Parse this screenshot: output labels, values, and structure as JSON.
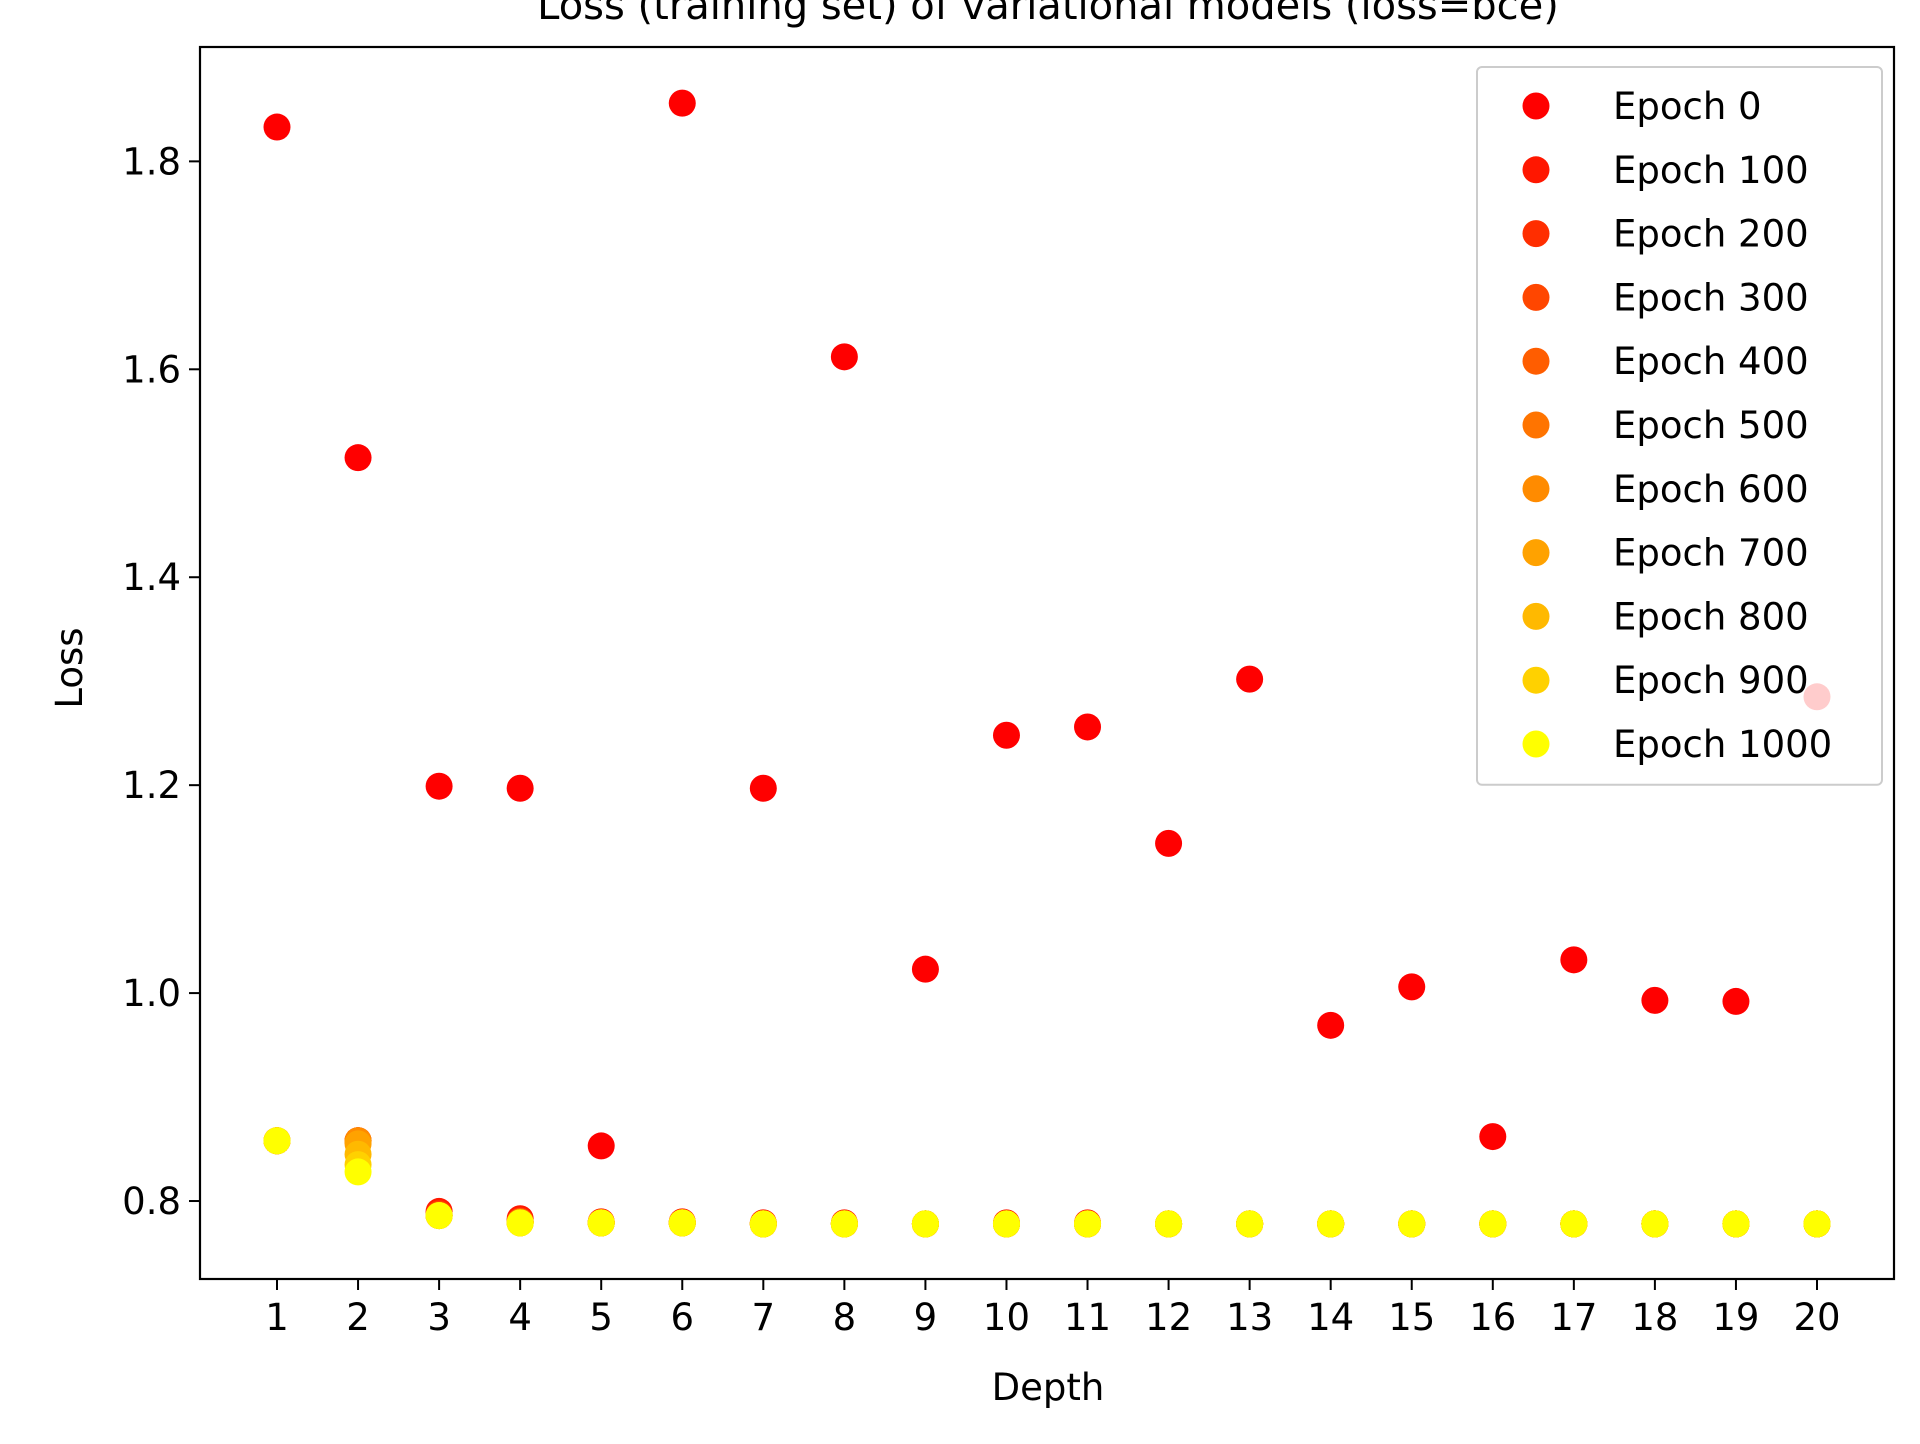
{
  "chart_data": {
    "type": "scatter",
    "title": "Loss (training set) of variational models (loss=bce)",
    "xlabel": "Depth",
    "ylabel": "Loss",
    "x": [
      1,
      2,
      3,
      4,
      5,
      6,
      7,
      8,
      9,
      10,
      11,
      12,
      13,
      14,
      15,
      16,
      17,
      18,
      19,
      20
    ],
    "xticks": [
      "1",
      "2",
      "3",
      "4",
      "5",
      "6",
      "7",
      "8",
      "9",
      "10",
      "11",
      "12",
      "13",
      "14",
      "15",
      "16",
      "17",
      "18",
      "19",
      "20"
    ],
    "xlim": [
      0.05,
      20.95
    ],
    "ylim": [
      0.725,
      1.91
    ],
    "yticks": [
      {
        "value": 0.8,
        "label": "0.8"
      },
      {
        "value": 1.0,
        "label": "1.0"
      },
      {
        "value": 1.2,
        "label": "1.2"
      },
      {
        "value": 1.4,
        "label": "1.4"
      },
      {
        "value": 1.6,
        "label": "1.6"
      },
      {
        "value": 1.8,
        "label": "1.8"
      }
    ],
    "grid": false,
    "legend_position": "upper right",
    "series": [
      {
        "name": "Epoch 0",
        "color": "#ff0000",
        "values": [
          1.833,
          1.515,
          1.199,
          1.197,
          0.853,
          1.856,
          1.197,
          1.612,
          1.023,
          1.248,
          1.256,
          1.144,
          1.302,
          0.969,
          1.006,
          0.862,
          1.032,
          0.993,
          0.992,
          1.285
        ]
      },
      {
        "name": "Epoch 100",
        "color": "#ff1700",
        "values": [
          0.858,
          0.858,
          0.79,
          0.783,
          0.78,
          0.78,
          0.779,
          0.779,
          0.778,
          0.779,
          0.779,
          0.778,
          0.778,
          0.778,
          0.778,
          0.778,
          0.778,
          0.778,
          0.778,
          0.778
        ]
      },
      {
        "name": "Epoch 200",
        "color": "#ff2e00",
        "values": [
          0.858,
          0.858,
          0.788,
          0.781,
          0.779,
          0.779,
          0.778,
          0.778,
          0.778,
          0.778,
          0.778,
          0.778,
          0.778,
          0.778,
          0.778,
          0.778,
          0.778,
          0.778,
          0.778,
          0.778
        ]
      },
      {
        "name": "Epoch 300",
        "color": "#ff4600",
        "values": [
          0.858,
          0.858,
          0.787,
          0.78,
          0.779,
          0.779,
          0.778,
          0.778,
          0.778,
          0.778,
          0.778,
          0.778,
          0.778,
          0.778,
          0.778,
          0.778,
          0.778,
          0.778,
          0.778,
          0.778
        ]
      },
      {
        "name": "Epoch 400",
        "color": "#ff5d00",
        "values": [
          0.858,
          0.858,
          0.786,
          0.78,
          0.779,
          0.779,
          0.778,
          0.778,
          0.778,
          0.778,
          0.778,
          0.778,
          0.778,
          0.778,
          0.778,
          0.778,
          0.778,
          0.778,
          0.778,
          0.778
        ]
      },
      {
        "name": "Epoch 500",
        "color": "#ff7400",
        "values": [
          0.858,
          0.858,
          0.786,
          0.78,
          0.779,
          0.779,
          0.778,
          0.778,
          0.778,
          0.778,
          0.778,
          0.778,
          0.778,
          0.778,
          0.778,
          0.778,
          0.778,
          0.778,
          0.778,
          0.778
        ]
      },
      {
        "name": "Epoch 600",
        "color": "#ff8b00",
        "values": [
          0.858,
          0.858,
          0.786,
          0.779,
          0.779,
          0.779,
          0.778,
          0.778,
          0.778,
          0.778,
          0.778,
          0.778,
          0.778,
          0.778,
          0.778,
          0.778,
          0.778,
          0.778,
          0.778,
          0.778
        ]
      },
      {
        "name": "Epoch 700",
        "color": "#ffa200",
        "values": [
          0.858,
          0.855,
          0.786,
          0.779,
          0.779,
          0.779,
          0.778,
          0.778,
          0.778,
          0.778,
          0.778,
          0.778,
          0.778,
          0.778,
          0.778,
          0.778,
          0.778,
          0.778,
          0.778,
          0.778
        ]
      },
      {
        "name": "Epoch 800",
        "color": "#ffb900",
        "values": [
          0.858,
          0.845,
          0.786,
          0.779,
          0.779,
          0.779,
          0.778,
          0.778,
          0.778,
          0.778,
          0.778,
          0.778,
          0.778,
          0.778,
          0.778,
          0.778,
          0.778,
          0.778,
          0.778,
          0.778
        ]
      },
      {
        "name": "Epoch 900",
        "color": "#ffd100",
        "values": [
          0.858,
          0.835,
          0.786,
          0.779,
          0.779,
          0.779,
          0.778,
          0.778,
          0.778,
          0.778,
          0.778,
          0.778,
          0.778,
          0.778,
          0.778,
          0.778,
          0.778,
          0.778,
          0.778,
          0.778
        ]
      },
      {
        "name": "Epoch 1000",
        "color": "#ffff00",
        "values": [
          0.858,
          0.828,
          0.786,
          0.779,
          0.779,
          0.779,
          0.778,
          0.778,
          0.778,
          0.778,
          0.778,
          0.778,
          0.778,
          0.778,
          0.778,
          0.778,
          0.778,
          0.778,
          0.778,
          0.778
        ]
      }
    ]
  }
}
